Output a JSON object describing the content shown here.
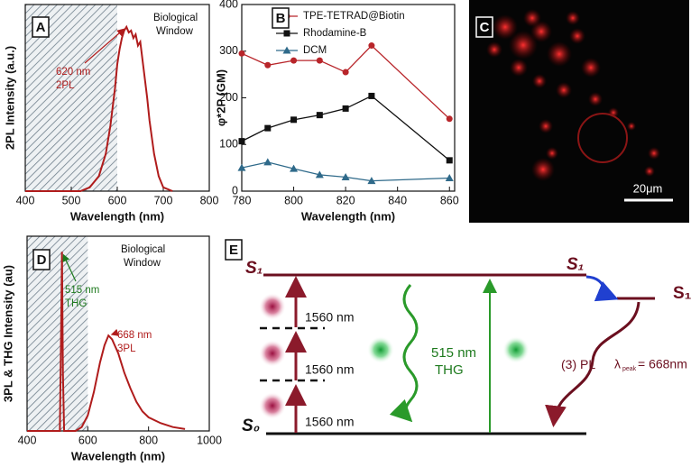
{
  "chart_data": [
    {
      "type": "line",
      "panel_label": "A",
      "xlabel": "Wavelength (nm)",
      "ylabel": "2PL Intensity (a.u.)",
      "xlim": [
        400,
        800
      ],
      "ylim": [
        0,
        1
      ],
      "xticks": [
        400,
        500,
        600,
        700,
        800
      ],
      "shaded_range": [
        400,
        600
      ],
      "x": [
        400,
        520,
        540,
        560,
        575,
        585,
        595,
        600,
        605,
        610,
        615,
        620,
        625,
        630,
        635,
        640,
        645,
        650,
        655,
        660,
        665,
        670,
        680,
        690,
        700,
        720
      ],
      "values": [
        0,
        0,
        0.02,
        0.08,
        0.2,
        0.35,
        0.55,
        0.68,
        0.76,
        0.82,
        0.86,
        0.88,
        0.85,
        0.86,
        0.82,
        0.84,
        0.78,
        0.8,
        0.7,
        0.6,
        0.5,
        0.38,
        0.2,
        0.08,
        0.02,
        0
      ],
      "color": "#b01c1c",
      "annotations": [
        {
          "lines": [
            "Biological",
            "Window"
          ],
          "color": "#111111"
        },
        {
          "lines": [
            "620 nm",
            "2PL"
          ],
          "color": "#b01c1c"
        }
      ]
    },
    {
      "type": "line",
      "panel_label": "B",
      "xlabel": "Wavelength (nm)",
      "ylabel": "φ*2P (GM)",
      "xlim": [
        780,
        862
      ],
      "ylim": [
        0,
        400
      ],
      "xticks": [
        780,
        800,
        820,
        840,
        860
      ],
      "yticks": [
        0,
        100,
        200,
        300,
        400
      ],
      "x": [
        780,
        790,
        800,
        810,
        820,
        830,
        860
      ],
      "legend": "top",
      "series": [
        {
          "name": "TPE-TETRAD@Biotin",
          "color": "#b8252a",
          "marker": "circle",
          "values": [
            295,
            270,
            280,
            280,
            255,
            312,
            155
          ]
        },
        {
          "name": "Rhodamine-B",
          "color": "#111111",
          "marker": "square",
          "values": [
            107,
            135,
            153,
            163,
            177,
            204,
            66
          ]
        },
        {
          "name": "DCM",
          "color": "#2f6a8a",
          "marker": "triangle",
          "values": [
            50,
            62,
            48,
            35,
            30,
            22,
            28
          ]
        }
      ]
    },
    {
      "type": "line",
      "panel_label": "D",
      "xlabel": "Wavelength (nm)",
      "ylabel": "3PL & THG Intensity (au)",
      "xlim": [
        400,
        1000
      ],
      "ylim": [
        0,
        1
      ],
      "xticks": [
        400,
        600,
        800,
        1000
      ],
      "shaded_range": [
        400,
        600
      ],
      "x": [
        400,
        508,
        512,
        515,
        518,
        522,
        560,
        580,
        600,
        620,
        640,
        655,
        668,
        680,
        700,
        720,
        740,
        760,
        780,
        800,
        840,
        880,
        920
      ],
      "values": [
        0,
        0,
        0.5,
        0.92,
        0.3,
        0,
        0,
        0.02,
        0.08,
        0.2,
        0.35,
        0.44,
        0.49,
        0.47,
        0.4,
        0.3,
        0.22,
        0.15,
        0.1,
        0.07,
        0.04,
        0.02,
        0.01
      ],
      "color": "#b01c1c",
      "annotations": [
        {
          "lines": [
            "Biological",
            "Window"
          ],
          "color": "#111111"
        },
        {
          "lines": [
            "515 nm",
            "THG"
          ],
          "color": "#1e7a1e"
        },
        {
          "lines": [
            "668 nm",
            "3PL"
          ],
          "color": "#b01c1c"
        }
      ]
    }
  ],
  "image_panel": {
    "label": "C",
    "scale_bar": "20μm"
  },
  "diagram": {
    "label": "E",
    "s1_left": "S₁",
    "s1_mid": "S₁",
    "s1_right": "S₁",
    "s0": "S₀",
    "pump": [
      "1560 nm",
      "1560 nm",
      "1560 nm"
    ],
    "thg": [
      "515 nm",
      "THG"
    ],
    "pl": "(3) PL",
    "lambda": "λ",
    "lambda_sub": "peak",
    "pl_value": "= 668nm"
  }
}
